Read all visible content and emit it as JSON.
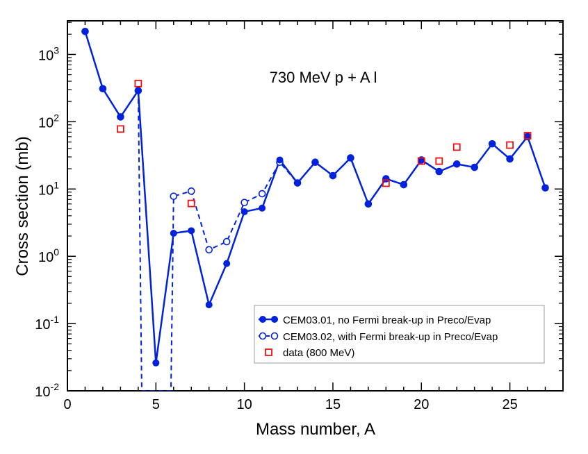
{
  "chart_data": {
    "type": "line",
    "title": "730 MeV p + A l",
    "xlabel": "Mass number, A",
    "ylabel": "Cross section (mb)",
    "xlim": [
      0,
      28
    ],
    "ylim": [
      0.01,
      3162
    ],
    "yscale": "log",
    "x_ticks": [
      0,
      5,
      10,
      15,
      20,
      25
    ],
    "y_ticks": [
      {
        "value": 0.01,
        "base": "10",
        "exp": "-2"
      },
      {
        "value": 0.1,
        "base": "10",
        "exp": "-1"
      },
      {
        "value": 1,
        "base": "10",
        "exp": "0"
      },
      {
        "value": 10,
        "base": "10",
        "exp": "1"
      },
      {
        "value": 100,
        "base": "10",
        "exp": "2"
      },
      {
        "value": 1000,
        "base": "10",
        "exp": "3"
      }
    ],
    "legend_position": "bottom-right",
    "series": [
      {
        "name": "CEM03.01, no Fermi break-up in Preco/Evap",
        "style": "solid-filled-circle",
        "color": "#0022dd",
        "points": [
          [
            1,
            2200
          ],
          [
            2,
            310
          ],
          [
            3,
            118
          ],
          [
            4,
            290
          ],
          [
            5,
            0.026
          ],
          [
            6,
            2.2
          ],
          [
            7,
            2.4
          ],
          [
            8,
            0.19
          ],
          [
            9,
            0.78
          ],
          [
            10,
            4.6
          ],
          [
            11,
            5.2
          ],
          [
            12,
            27
          ],
          [
            13,
            12.3
          ],
          [
            14,
            25
          ],
          [
            15,
            15.8
          ],
          [
            16,
            29
          ],
          [
            17,
            6.0
          ],
          [
            18,
            14.2
          ],
          [
            19,
            11.6
          ],
          [
            20,
            27
          ],
          [
            21,
            18.2
          ],
          [
            22,
            23.5
          ],
          [
            23,
            21
          ],
          [
            24,
            47
          ],
          [
            25,
            28
          ],
          [
            26,
            60
          ],
          [
            27,
            10.4
          ]
        ]
      },
      {
        "name": "CEM03.02, with Fermi break-up in Preco/Evap",
        "style": "dashed-open-circle",
        "color": "#0022dd",
        "points": [
          [
            1,
            2200
          ],
          [
            2,
            310
          ],
          [
            3,
            118
          ],
          [
            4,
            290
          ],
          [
            4.2,
            0.01
          ],
          [
            5.85,
            0.01
          ],
          [
            6,
            7.8
          ],
          [
            7,
            9.3
          ],
          [
            8,
            1.25
          ],
          [
            9,
            1.65
          ],
          [
            10,
            6.3
          ],
          [
            11,
            8.5
          ],
          [
            12,
            25
          ],
          [
            13,
            12.3
          ],
          [
            14,
            25
          ],
          [
            15,
            15.8
          ],
          [
            16,
            29
          ],
          [
            17,
            6.0
          ],
          [
            18,
            14.2
          ],
          [
            19,
            11.6
          ],
          [
            20,
            27
          ],
          [
            21,
            18.2
          ],
          [
            22,
            23.5
          ],
          [
            23,
            21
          ],
          [
            24,
            47
          ],
          [
            25,
            28
          ],
          [
            26,
            60
          ],
          [
            27,
            10.4
          ]
        ],
        "marker_points": [
          [
            1,
            2200
          ],
          [
            2,
            310
          ],
          [
            3,
            118
          ],
          [
            4,
            290
          ],
          [
            6,
            7.8
          ],
          [
            7,
            9.3
          ],
          [
            8,
            1.25
          ],
          [
            9,
            1.65
          ],
          [
            10,
            6.3
          ],
          [
            11,
            8.5
          ],
          [
            12,
            25
          ],
          [
            13,
            12.3
          ],
          [
            14,
            25
          ],
          [
            15,
            15.8
          ],
          [
            16,
            29
          ],
          [
            17,
            6.0
          ],
          [
            18,
            14.2
          ],
          [
            19,
            11.6
          ],
          [
            20,
            27
          ],
          [
            21,
            18.2
          ],
          [
            22,
            23.5
          ],
          [
            23,
            21
          ],
          [
            24,
            47
          ],
          [
            25,
            28
          ],
          [
            26,
            60
          ],
          [
            27,
            10.4
          ]
        ]
      },
      {
        "name": "data (800 MeV)",
        "style": "open-square",
        "color": "#ee1111",
        "points": [
          [
            3,
            78
          ],
          [
            4,
            370
          ],
          [
            7,
            6.1
          ],
          [
            18,
            12.2
          ],
          [
            20,
            26
          ],
          [
            21,
            26
          ],
          [
            22,
            42
          ],
          [
            25,
            45
          ],
          [
            26,
            62
          ]
        ]
      }
    ]
  }
}
